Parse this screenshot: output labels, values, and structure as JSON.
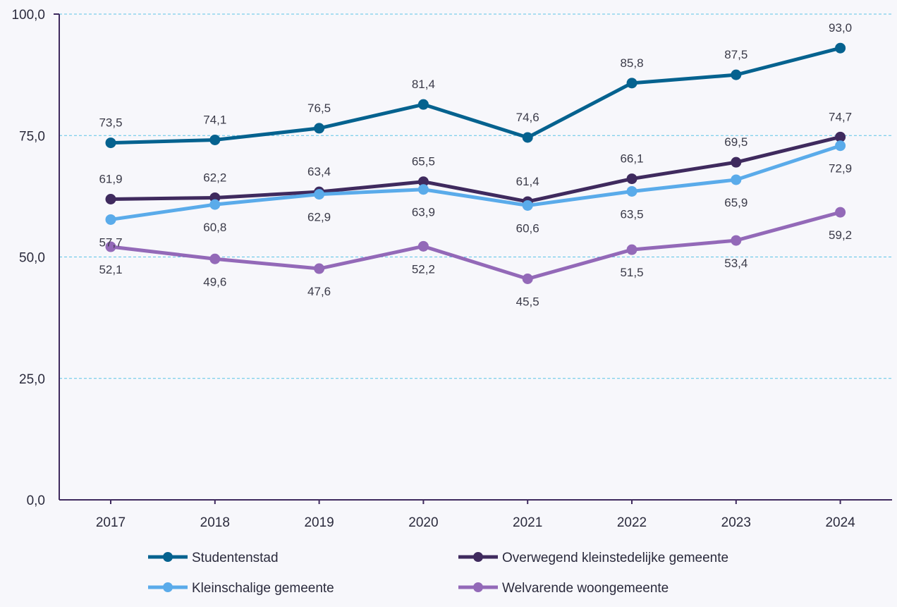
{
  "chart_data": {
    "type": "line",
    "title": "",
    "xlabel": "",
    "ylabel": "",
    "x": [
      "2017",
      "2018",
      "2019",
      "2020",
      "2021",
      "2022",
      "2023",
      "2024"
    ],
    "ylim": [
      0,
      100
    ],
    "yticks": [
      "0,0",
      "25,0",
      "50,0",
      "75,0",
      "100,0"
    ],
    "ytick_values": [
      0,
      25,
      50,
      75,
      100
    ],
    "grid": "horizontal dashed",
    "legend_position": "bottom",
    "series": [
      {
        "key": "studentenstad",
        "name": "Studentenstad",
        "color": "#05628f",
        "values": [
          73.5,
          74.1,
          76.5,
          81.4,
          74.6,
          85.8,
          87.5,
          93.0
        ],
        "labels": [
          "73,5",
          "74,1",
          "76,5",
          "81,4",
          "74,6",
          "85,8",
          "87,5",
          "93,0"
        ],
        "label_pos": [
          "above",
          "above",
          "above",
          "above",
          "above",
          "above",
          "above",
          "above"
        ]
      },
      {
        "key": "overwegend",
        "name": "Overwegend kleinstedelijke gemeente",
        "color": "#3f2a5e",
        "values": [
          61.9,
          62.2,
          63.4,
          65.5,
          61.4,
          66.1,
          69.5,
          74.7
        ],
        "labels": [
          "61,9",
          "62,2",
          "63,4",
          "65,5",
          "61,4",
          "66,1",
          "69,5",
          "74,7"
        ],
        "label_pos": [
          "above",
          "above",
          "above",
          "above",
          "above",
          "above",
          "above",
          "above"
        ]
      },
      {
        "key": "kleinschalig",
        "name": "Kleinschalige gemeente",
        "color": "#5aabea",
        "values": [
          57.7,
          60.8,
          62.9,
          63.9,
          60.6,
          63.5,
          65.9,
          72.9
        ],
        "labels": [
          "57,7",
          "60,8",
          "62,9",
          "63,9",
          "60,6",
          "63,5",
          "65,9",
          "72,9"
        ],
        "label_pos": [
          "below",
          "below",
          "below",
          "below",
          "below",
          "below",
          "below",
          "below"
        ]
      },
      {
        "key": "welvarend",
        "name": "Welvarende woongemeente",
        "color": "#9369b8",
        "values": [
          52.1,
          49.6,
          47.6,
          52.2,
          45.5,
          51.5,
          53.4,
          59.2
        ],
        "labels": [
          "52,1",
          "49,6",
          "47,6",
          "52,2",
          "45,5",
          "51,5",
          "53,4",
          "59,2"
        ],
        "label_pos": [
          "below",
          "below",
          "below",
          "below",
          "below",
          "below",
          "below",
          "below"
        ]
      }
    ]
  }
}
